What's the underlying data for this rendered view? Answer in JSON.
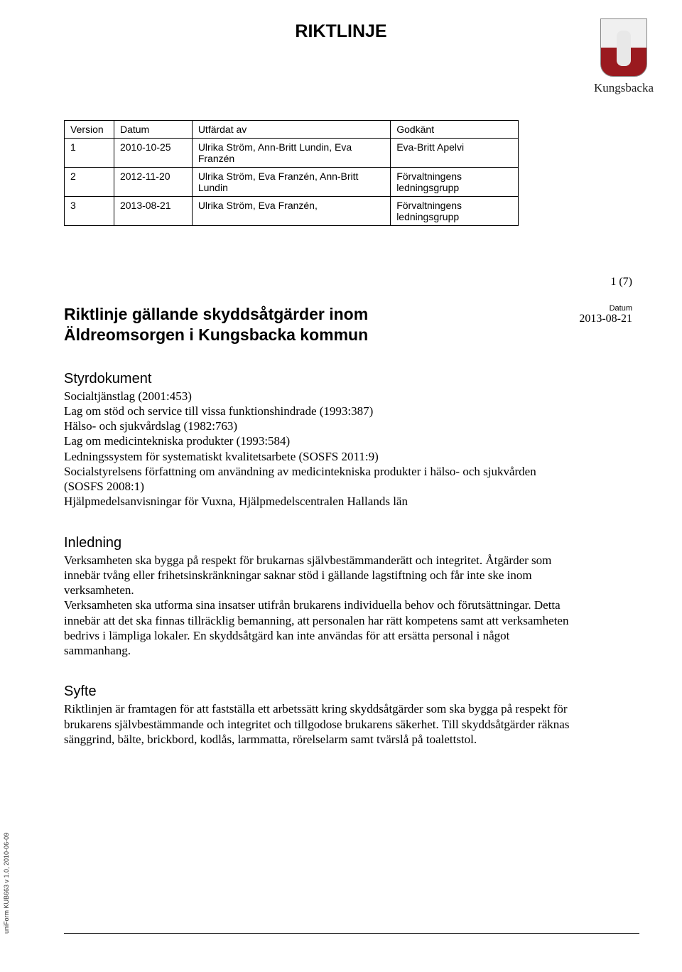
{
  "header": {
    "doc_type": "RIKTLINJE",
    "logo_text": "Kungsbacka"
  },
  "meta_table": {
    "columns": [
      "Version",
      "Datum",
      "Utfärdat av",
      "Godkänt"
    ],
    "rows": [
      [
        "1",
        "2010-10-25",
        "Ulrika Ström, Ann-Britt Lundin, Eva Franzén",
        "Eva-Britt Apelvi"
      ],
      [
        "2",
        "2012-11-20",
        "Ulrika Ström, Eva Franzén, Ann-Britt Lundin",
        "Förvaltningens ledningsgrupp"
      ],
      [
        "3",
        "2013-08-21",
        "Ulrika Ström, Eva Franzén,",
        "Förvaltningens ledningsgrupp"
      ]
    ],
    "col_widths": [
      "70px",
      "110px",
      "280px",
      "180px"
    ]
  },
  "page_number": "1 (7)",
  "title_block": {
    "title": "Riktlinje gällande skyddsåtgärder inom Äldreomsorgen i Kungsbacka kommun",
    "date_label": "Datum",
    "date_value": "2013-08-21"
  },
  "sections": {
    "styrdokument": {
      "heading": "Styrdokument",
      "lines": [
        "Socialtjänstlag (2001:453)",
        "Lag om stöd och service till vissa funktionshindrade (1993:387)",
        "Hälso- och sjukvårdslag (1982:763)",
        "Lag om medicintekniska produkter (1993:584)",
        "Ledningssystem för systematiskt kvalitetsarbete (SOSFS 2011:9)",
        "Socialstyrelsens författning om användning av medicintekniska produkter i hälso- och sjukvården (SOSFS 2008:1)",
        "Hjälpmedelsanvisningar för Vuxna, Hjälpmedelscentralen Hallands län"
      ]
    },
    "inledning": {
      "heading": "Inledning",
      "body": "Verksamheten ska bygga på respekt för brukarnas självbestämmanderätt och integritet. Åtgärder som innebär tvång eller frihetsinskränkningar saknar stöd i gällande lagstiftning och får inte ske inom verksamheten.\nVerksamheten ska utforma sina insatser utifrån brukarens individuella behov och förutsättningar. Detta innebär att det ska finnas tillräcklig bemanning, att personalen har rätt kompetens samt att verksamheten bedrivs i lämpliga lokaler. En skyddsåtgärd kan inte användas för att ersätta personal i något sammanhang."
    },
    "syfte": {
      "heading": "Syfte",
      "body": "Riktlinjen är framtagen för att fastställa ett arbetssätt kring skyddsåtgärder som ska bygga på respekt för brukarens självbestämmande och integritet och tillgodose brukarens säkerhet. Till skyddsåtgärder räknas sänggrind, bälte, brickbord, kodlås, larmmatta, rörelselarm samt tvärslå på toalettstol."
    }
  },
  "side_note": "uniForm KUB663 v 1.0, 2010-06-09",
  "style": {
    "page_bg": "#ffffff",
    "text_color": "#000000",
    "border_color": "#000000",
    "crest_top": "#f0f0f0",
    "crest_bottom": "#9a1a1f",
    "heading_font": "Arial, Helvetica, sans-serif",
    "body_font": "Times New Roman, Times, serif",
    "header_title_fontsize": 25,
    "doc_title_fontsize": 23,
    "section_heading_fontsize": 20,
    "body_fontsize": 17,
    "meta_table_fontsize": 14
  }
}
